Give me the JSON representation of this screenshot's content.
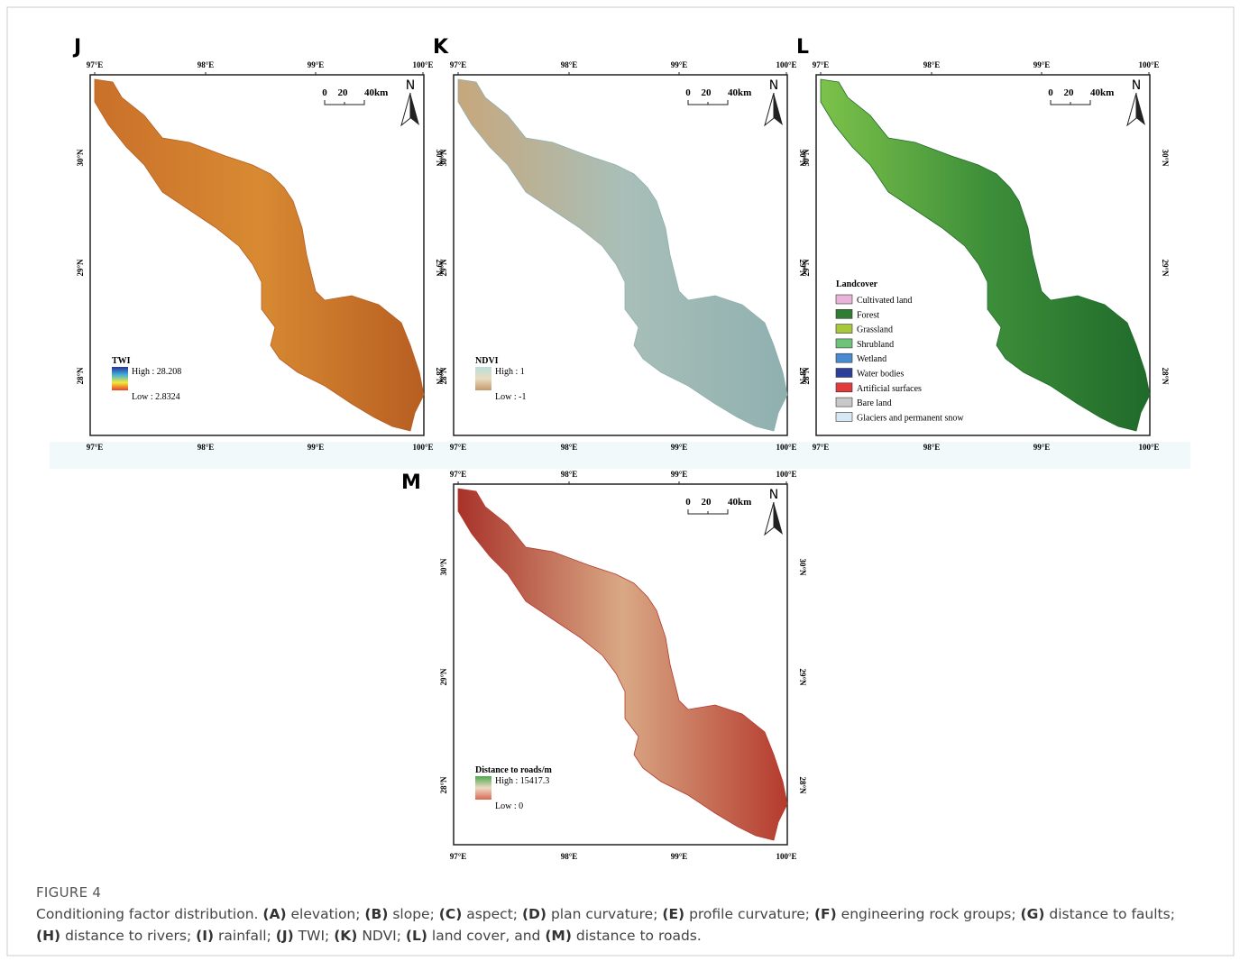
{
  "graticule": {
    "lon": [
      "97°E",
      "98°E",
      "99°E",
      "100°E"
    ],
    "lat": [
      "30°N",
      "29°N",
      "28°N"
    ]
  },
  "scale_bar": [
    "0",
    "20",
    "40km"
  ],
  "north": "N",
  "panels": [
    {
      "letter": "J",
      "legend": {
        "title": "TWI",
        "high": "High : 28.208",
        "low": "Low : 2.8324",
        "colors": [
          "#2b2f9e",
          "#3fb0d8",
          "#f4ea3a",
          "#e8402a"
        ]
      },
      "map_colors": [
        "#c9702a",
        "#d88a32",
        "#b75e22"
      ]
    },
    {
      "letter": "K",
      "legend": {
        "title": "NDVI",
        "high": "High : 1",
        "low": "Low : -1",
        "colors": [
          "#b9dedc",
          "#e9dcc0",
          "#c49a6c"
        ]
      },
      "map_colors": [
        "#c7a77c",
        "#a9bfb8",
        "#8fb0b0"
      ]
    },
    {
      "letter": "L",
      "legend": {
        "title": "Landcover",
        "classes": [
          {
            "label": "Cultivated land",
            "color": "#e8b4d8"
          },
          {
            "label": "Forest",
            "color": "#2e7d32"
          },
          {
            "label": "Grassland",
            "color": "#a6c83a"
          },
          {
            "label": "Shrubland",
            "color": "#6fc27a"
          },
          {
            "label": "Wetland",
            "color": "#4a8ad0"
          },
          {
            "label": "Water bodies",
            "color": "#2d3e9a"
          },
          {
            "label": "Artificial surfaces",
            "color": "#e03a3a"
          },
          {
            "label": "Bare land",
            "color": "#c8c8c8"
          },
          {
            "label": "Glaciers and permanent snow",
            "color": "#d6e8f4"
          }
        ]
      },
      "map_colors": [
        "#7cc24a",
        "#3e8f3a",
        "#1f6a2a"
      ]
    },
    {
      "letter": "M",
      "legend": {
        "title": "Distance to roads/m",
        "high": "High : 15417.3",
        "low": "Low : 0",
        "colors": [
          "#4caa4c",
          "#eed9c4",
          "#d86a55"
        ]
      },
      "map_colors": [
        "#a8322a",
        "#d9a884",
        "#b53a2e"
      ]
    }
  ],
  "caption": {
    "label": "FIGURE 4",
    "lead": "Conditioning factor distribution.",
    "items": [
      {
        "key": "(A)",
        "text": "elevation;"
      },
      {
        "key": "(B)",
        "text": "slope;"
      },
      {
        "key": "(C)",
        "text": "aspect;"
      },
      {
        "key": "(D)",
        "text": "plan curvature;"
      },
      {
        "key": "(E)",
        "text": "profile curvature;"
      },
      {
        "key": "(F)",
        "text": "engineering rock groups;"
      },
      {
        "key": "(G)",
        "text": "distance to faults;"
      },
      {
        "key": "(H)",
        "text": "distance to rivers;"
      },
      {
        "key": "(I)",
        "text": "rainfall;"
      },
      {
        "key": "(J)",
        "text": "TWI;"
      },
      {
        "key": "(K)",
        "text": "NDVI;"
      },
      {
        "key": "(L)",
        "text": "land cover, and"
      },
      {
        "key": "(M)",
        "text": "distance to roads."
      }
    ]
  }
}
